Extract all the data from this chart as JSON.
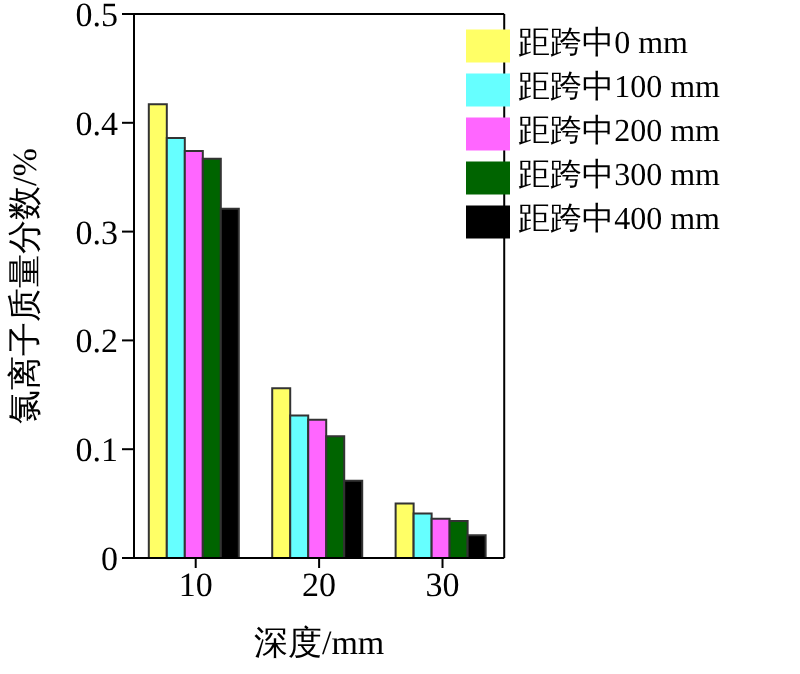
{
  "chart_data": {
    "type": "bar",
    "xlabel": "深度/mm",
    "ylabel": "氯离子质量分数/%",
    "categories": [
      "10",
      "20",
      "30"
    ],
    "series": [
      {
        "name": "距跨中0 mm",
        "color": "#ffff66",
        "values": [
          0.417,
          0.156,
          0.05
        ]
      },
      {
        "name": "距跨中100 mm",
        "color": "#66ffff",
        "values": [
          0.386,
          0.131,
          0.041
        ]
      },
      {
        "name": "距跨中200 mm",
        "color": "#ff66ff",
        "values": [
          0.374,
          0.127,
          0.036
        ]
      },
      {
        "name": "距跨中300 mm",
        "color": "#006400",
        "values": [
          0.367,
          0.112,
          0.034
        ]
      },
      {
        "name": "距跨中400 mm",
        "color": "#000000",
        "values": [
          0.321,
          0.071,
          0.021
        ]
      }
    ],
    "ylim": [
      0,
      0.5
    ],
    "yticks": [
      0,
      0.1,
      0.2,
      0.3,
      0.4,
      0.5
    ],
    "grid": false,
    "legend": "top right"
  }
}
